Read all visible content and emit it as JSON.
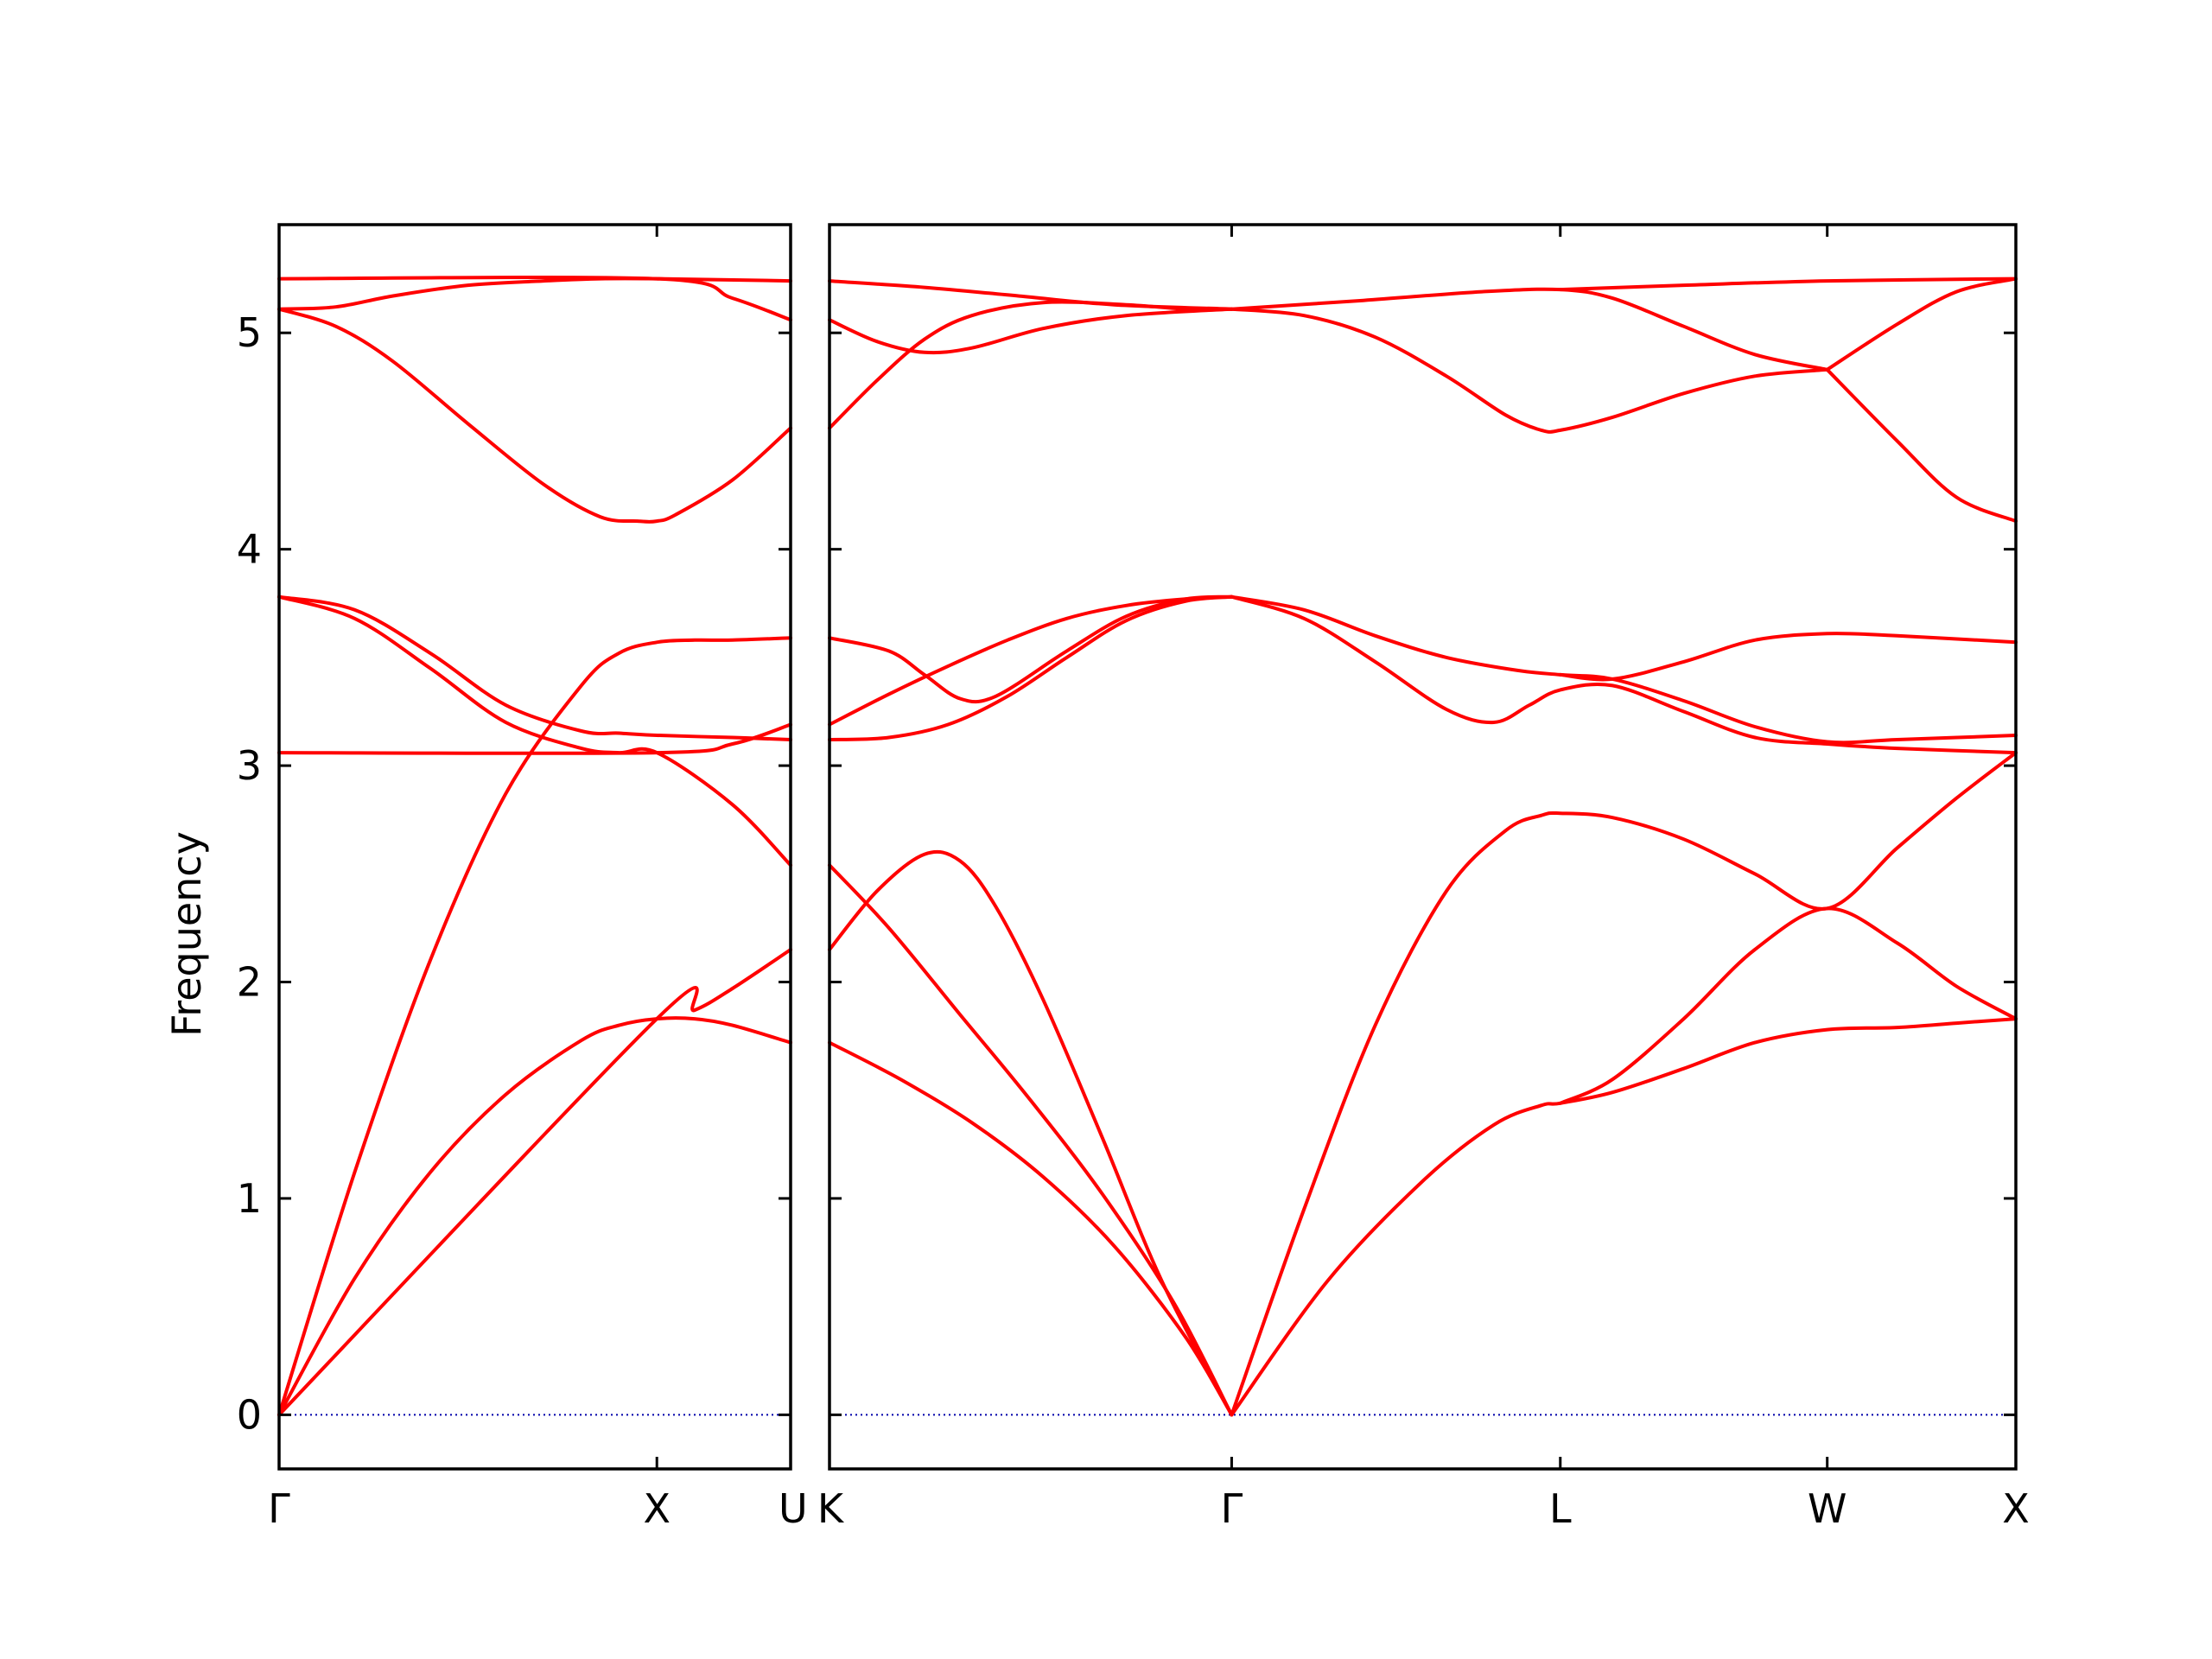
{
  "chart_data": {
    "type": "line",
    "title": "",
    "ylabel": "Frequency",
    "ylim": [
      -0.25,
      5.5
    ],
    "yticks": [
      0,
      1,
      2,
      3,
      4,
      5
    ],
    "grid": false,
    "colors": {
      "band": "#ff0000",
      "zero_line": "#0000aa",
      "axes": "#000000"
    },
    "panels": [
      {
        "id": "left",
        "xlim": [
          0,
          1.354
        ],
        "tick_labels": [
          {
            "x": 0,
            "label": "Γ"
          },
          {
            "x": 1.0,
            "label": "X"
          },
          {
            "x": 1.354,
            "label": "U"
          }
        ],
        "series": [
          {
            "x": [
              0,
              0.2,
              0.4,
              0.6,
              0.8,
              0.9,
              1.0,
              1.1,
              1.2,
              1.354
            ],
            "values": [
              0,
              0.63,
              1.12,
              1.48,
              1.73,
              1.8,
              1.83,
              1.83,
              1.8,
              1.72
            ]
          },
          {
            "x": [
              0,
              1.0,
              1.1,
              1.2,
              1.354
            ],
            "values": [
              0,
              1.83,
              1.87,
              1.97,
              2.15
            ]
          },
          {
            "x": [
              0,
              0.2,
              0.4,
              0.6,
              0.8,
              0.9,
              1.0,
              1.1,
              1.2,
              1.354
            ],
            "values": [
              0,
              1.12,
              2.1,
              2.87,
              3.37,
              3.52,
              3.57,
              3.58,
              3.58,
              3.59
            ]
          },
          {
            "x": [
              0,
              0.2,
              0.4,
              0.6,
              0.8,
              0.9,
              1.0,
              1.2,
              1.354
            ],
            "values": [
              3.78,
              3.68,
              3.45,
              3.2,
              3.08,
              3.06,
              3.06,
              2.82,
              2.54
            ]
          },
          {
            "x": [
              0,
              0.2,
              0.4,
              0.6,
              0.8,
              0.9,
              1.0,
              1.2,
              1.354
            ],
            "values": [
              3.78,
              3.72,
              3.52,
              3.28,
              3.16,
              3.15,
              3.14,
              3.13,
              3.12
            ]
          },
          {
            "x": [
              0,
              1.0,
              1.2,
              1.354
            ],
            "values": [
              3.06,
              3.06,
              3.1,
              3.19
            ]
          },
          {
            "x": [
              0,
              0.15,
              0.3,
              0.5,
              0.7,
              0.85,
              0.95,
              1.0,
              1.05,
              1.2,
              1.354
            ],
            "values": [
              5.11,
              5.03,
              4.87,
              4.58,
              4.3,
              4.15,
              4.13,
              4.13,
              4.16,
              4.32,
              4.56
            ]
          },
          {
            "x": [
              0,
              0.15,
              0.3,
              0.5,
              0.7,
              0.85,
              1.0,
              1.354
            ],
            "values": [
              5.11,
              5.12,
              5.17,
              5.22,
              5.24,
              5.25,
              5.25,
              5.24
            ]
          },
          {
            "x": [
              0,
              1.0,
              1.2,
              1.354
            ],
            "values": [
              5.25,
              5.25,
              5.16,
              5.06
            ]
          }
        ]
      },
      {
        "id": "right",
        "xlim": [
          0,
          1.0
        ],
        "tick_labels": [
          {
            "x": 0,
            "label": "K"
          },
          {
            "x": 0.339,
            "label": "Γ"
          },
          {
            "x": 0.616,
            "label": "L"
          },
          {
            "x": 0.841,
            "label": "W"
          },
          {
            "x": 1.0,
            "label": "X"
          }
        ],
        "series": [
          {
            "x": [
              0,
              0.06,
              0.12,
              0.18,
              0.24,
              0.3,
              0.339
            ],
            "values": [
              1.72,
              1.55,
              1.35,
              1.1,
              0.78,
              0.36,
              0
            ]
          },
          {
            "x": [
              0,
              0.05,
              0.11,
              0.17,
              0.23,
              0.29,
              0.339
            ],
            "values": [
              2.54,
              2.25,
              1.85,
              1.45,
              1.02,
              0.52,
              0
            ]
          },
          {
            "x": [
              0,
              0.04,
              0.08,
              0.11,
              0.14,
              0.18,
              0.23,
              0.28,
              0.339
            ],
            "values": [
              2.15,
              2.42,
              2.59,
              2.56,
              2.35,
              1.92,
              1.28,
              0.62,
              0
            ]
          },
          {
            "x": [
              0.339,
              0.42,
              0.5,
              0.56,
              0.6,
              0.616,
              0.66,
              0.72,
              0.78,
              0.841,
              0.9,
              0.95,
              1.0
            ],
            "values": [
              0,
              0.62,
              1.08,
              1.34,
              1.43,
              1.44,
              1.49,
              1.6,
              1.72,
              1.78,
              1.79,
              1.81,
              1.83
            ]
          },
          {
            "x": [
              0.616,
              0.66,
              0.72,
              0.78,
              0.841,
              0.9,
              0.95,
              1.0
            ],
            "values": [
              1.44,
              1.55,
              1.83,
              2.15,
              2.34,
              2.18,
              1.98,
              1.83
            ]
          },
          {
            "x": [
              0.339,
              0.4,
              0.46,
              0.52,
              0.57,
              0.6,
              0.616,
              0.66,
              0.72,
              0.78,
              0.841,
              0.9,
              0.95,
              1.0
            ],
            "values": [
              0,
              0.95,
              1.8,
              2.42,
              2.7,
              2.77,
              2.78,
              2.76,
              2.66,
              2.5,
              2.34,
              2.62,
              2.85,
              3.06
            ]
          },
          {
            "x": [
              0,
              0.05,
              0.1,
              0.15,
              0.2,
              0.25,
              0.3,
              0.339
            ],
            "values": [
              3.12,
              3.13,
              3.19,
              3.32,
              3.5,
              3.67,
              3.76,
              3.78
            ]
          },
          {
            "x": [
              0,
              0.05,
              0.08,
              0.11,
              0.14,
              0.2,
              0.25,
              0.3,
              0.339
            ],
            "values": [
              3.59,
              3.53,
              3.42,
              3.31,
              3.32,
              3.53,
              3.69,
              3.77,
              3.78
            ]
          },
          {
            "x": [
              0,
              0.05,
              0.1,
              0.15,
              0.2,
              0.25,
              0.3,
              0.339
            ],
            "values": [
              3.19,
              3.33,
              3.46,
              3.58,
              3.68,
              3.74,
              3.77,
              3.78
            ]
          },
          {
            "x": [
              0.339,
              0.4,
              0.46,
              0.52,
              0.56,
              0.59,
              0.616,
              0.66,
              0.72,
              0.78,
              0.841,
              0.9,
              1.0
            ],
            "values": [
              3.78,
              3.68,
              3.48,
              3.26,
              3.2,
              3.28,
              3.35,
              3.37,
              3.25,
              3.13,
              3.1,
              3.08,
              3.06
            ]
          },
          {
            "x": [
              0.339,
              0.4,
              0.46,
              0.52,
              0.58,
              0.616,
              0.66,
              0.72,
              0.78,
              0.841,
              0.9,
              1.0
            ],
            "values": [
              3.78,
              3.72,
              3.6,
              3.5,
              3.44,
              3.42,
              3.4,
              3.3,
              3.18,
              3.11,
              3.12,
              3.14
            ]
          },
          {
            "x": [
              0.616,
              0.66,
              0.72,
              0.78,
              0.841,
              0.9,
              1.0
            ],
            "values": [
              3.42,
              3.4,
              3.48,
              3.58,
              3.61,
              3.6,
              3.57
            ]
          },
          {
            "x": [
              0,
              0.04,
              0.08,
              0.12,
              0.18,
              0.25,
              0.3,
              0.339
            ],
            "values": [
              4.56,
              4.78,
              4.97,
              5.08,
              5.14,
              5.13,
              5.11,
              5.11
            ]
          },
          {
            "x": [
              0,
              0.04,
              0.08,
              0.12,
              0.18,
              0.25,
              0.339
            ],
            "values": [
              5.06,
              4.96,
              4.91,
              4.93,
              5.02,
              5.08,
              5.11
            ]
          },
          {
            "x": [
              0,
              0.08,
              0.16,
              0.24,
              0.339
            ],
            "values": [
              5.24,
              5.21,
              5.17,
              5.13,
              5.11
            ]
          },
          {
            "x": [
              0.339,
              0.4,
              0.46,
              0.52,
              0.57,
              0.6,
              0.616,
              0.66,
              0.72,
              0.78,
              0.841
            ],
            "values": [
              5.11,
              5.08,
              4.98,
              4.8,
              4.62,
              4.55,
              4.55,
              4.61,
              4.72,
              4.8,
              4.83
            ]
          },
          {
            "x": [
              0.339,
              0.45,
              0.55,
              0.616,
              0.66,
              0.72,
              0.78,
              0.841
            ],
            "values": [
              5.11,
              5.15,
              5.19,
              5.2,
              5.16,
              5.03,
              4.9,
              4.83
            ]
          },
          {
            "x": [
              0.616,
              0.72,
              0.841,
              1.0
            ],
            "values": [
              5.2,
              5.22,
              5.24,
              5.25
            ]
          },
          {
            "x": [
              0.841,
              0.9,
              0.95,
              1.0
            ],
            "values": [
              4.83,
              5.04,
              5.19,
              5.25
            ]
          },
          {
            "x": [
              0.841,
              0.9,
              0.95,
              1.0
            ],
            "values": [
              4.83,
              4.5,
              4.24,
              4.13
            ]
          }
        ]
      }
    ]
  }
}
